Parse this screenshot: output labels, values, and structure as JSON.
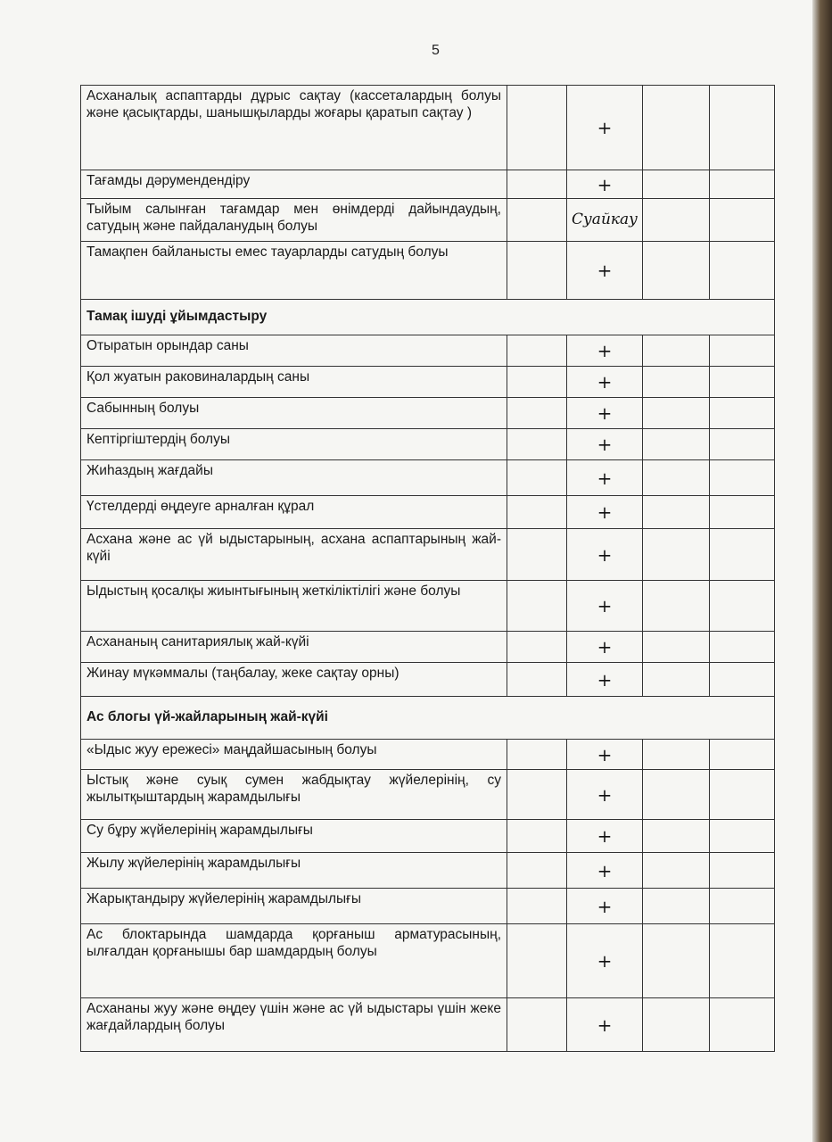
{
  "page_number": "5",
  "rows": [
    {
      "text": "Асханалық аспаптарды дұрыс сақтау (кассеталардың болуы және қасықтарды, шанышқыларды жоғары қаратып сақтау )",
      "mark": "+"
    },
    {
      "text": "Тағамды дәрумендендіру",
      "mark": "+"
    },
    {
      "text": "Тыйым салынған тағамдар мен өнімдерді дайындаудың, сатудың және пайдаланудың болуы",
      "mark": "",
      "note": "Суайкау"
    },
    {
      "text": "Тамақпен байланысты емес тауарларды сатудың болуы",
      "mark": "+"
    },
    {
      "section": "Тамақ ішуді ұйымдастыру"
    },
    {
      "text": "Отыратын орындар саны",
      "mark": "+"
    },
    {
      "text": "Қол жуатын раковиналардың саны",
      "mark": "+"
    },
    {
      "text": "Сабынның болуы",
      "mark": "+"
    },
    {
      "text": "Кептіргіштердің болуы",
      "mark": "+"
    },
    {
      "text": "Жиһаздың жағдайы",
      "mark": "+"
    },
    {
      "text": "Үстелдерді өңдеуге арналған құрал",
      "mark": "+"
    },
    {
      "text": "Асхана және ас үй ыдыстарының, асхана аспаптарының жай-күйі",
      "mark": "+"
    },
    {
      "text": "Ыдыстың қосалқы жиынтығының жеткіліктілігі және болуы",
      "mark": "+"
    },
    {
      "text": "Асхананың санитариялық жай-күйі",
      "mark": "+"
    },
    {
      "text": "Жинау мүкәммалы (таңбалау, жеке сақтау орны)",
      "mark": "+"
    },
    {
      "section": "Ас блогы үй-жайларының жай-күйі"
    },
    {
      "text": "«Ыдыс жуу ережесі» маңдайшасының болуы",
      "mark": "+"
    },
    {
      "text": "Ыстық және суық сумен жабдықтау жүйелерінің, су жылытқыштардың жарамдылығы",
      "mark": "+"
    },
    {
      "text": "Су бұру жүйелерінің жарамдылығы",
      "mark": "+"
    },
    {
      "text": "Жылу жүйелерінің жарамдылығы",
      "mark": "+"
    },
    {
      "text": "Жарықтандыру жүйелерінің жарамдылығы",
      "mark": "+"
    },
    {
      "text": "Ас блоктарында шамдарда қорғаныш арматурасының, ылғалдан қорғанышы бар шамдардың болуы",
      "mark": "+"
    },
    {
      "text": "Асхананы жуу және өңдеу үшін және ас үй ыдыстары үшін жеке жағдайлардың болуы",
      "mark": "+"
    }
  ]
}
